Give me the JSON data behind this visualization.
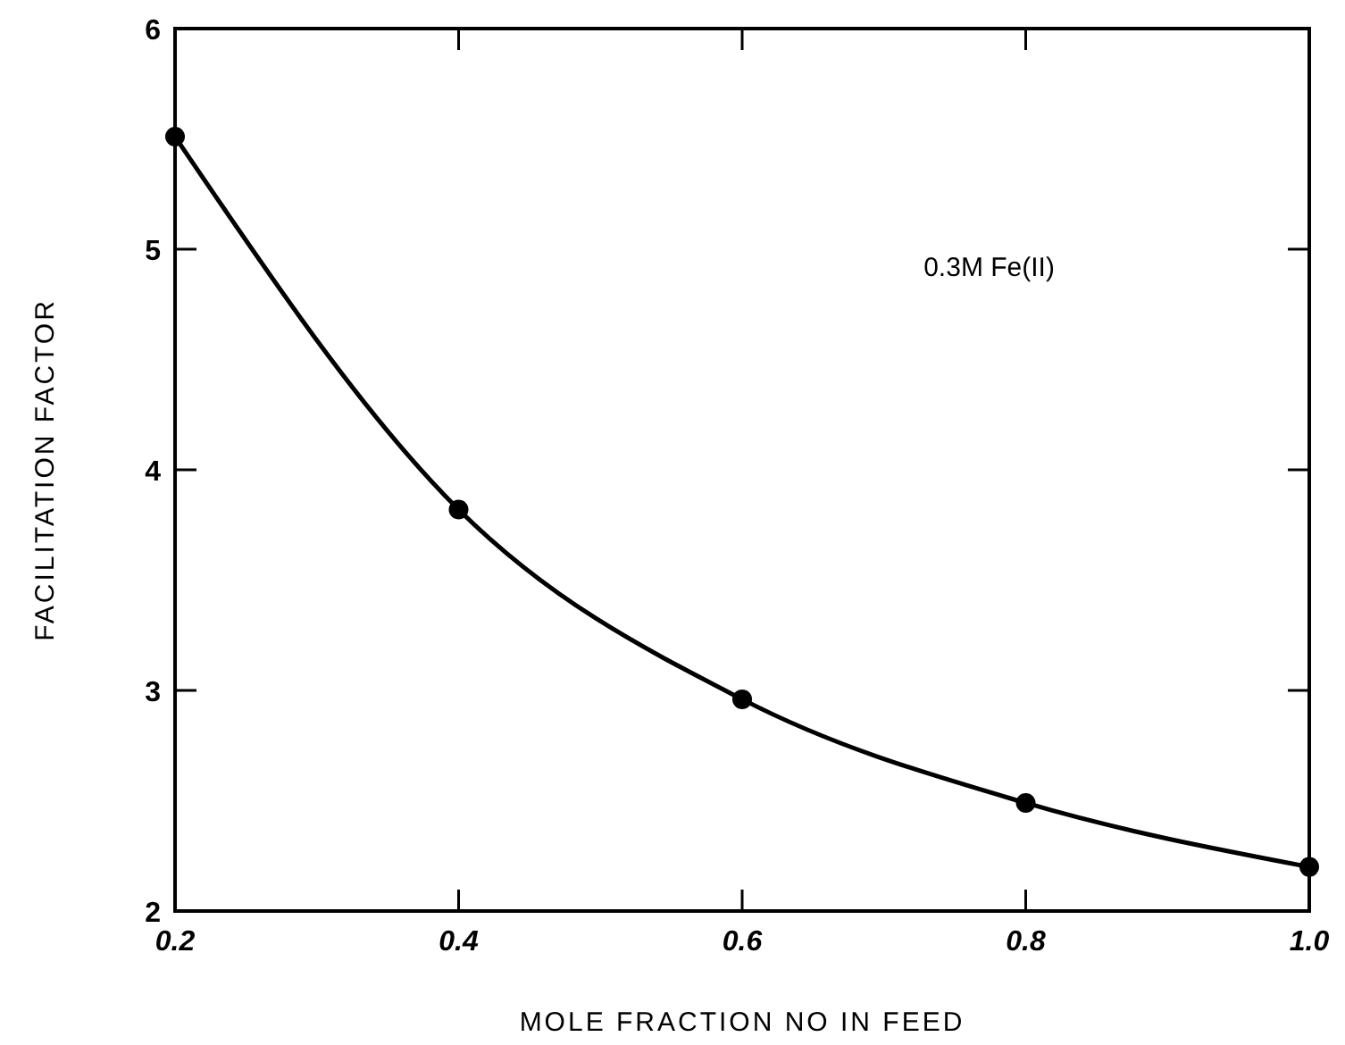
{
  "chart_data": {
    "type": "line",
    "xlabel": "MOLE FRACTION NO IN FEED",
    "ylabel": "FACILITATION FACTOR",
    "x": [
      0.2,
      0.4,
      0.6,
      0.8,
      1.0
    ],
    "series": [
      {
        "color": "#000000",
        "values": [
          5.51,
          3.82,
          2.96,
          2.49,
          2.2
        ]
      }
    ],
    "xlim": [
      0.2,
      1.0
    ],
    "xticks": [
      0.2,
      0.4,
      0.6,
      0.8,
      {
        "value": 1.0,
        "label": "1.0"
      }
    ],
    "ylim": [
      2,
      6
    ],
    "yticks": [
      2,
      3,
      4,
      5,
      6
    ],
    "annotations": [
      "0.3M Fe(II)"
    ],
    "marker": "circle",
    "line_style": "solid"
  }
}
